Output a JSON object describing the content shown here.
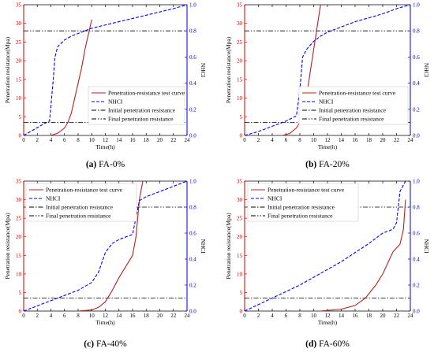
{
  "chart_data": [
    {
      "type": "line",
      "caption_letter": "(a)",
      "caption_text": "FA-0%",
      "xlabel": "Time(h)",
      "ylabel": "Penetration resistance(Mpa)",
      "y2label": "NHCI",
      "xlim": [
        0,
        24
      ],
      "ylim": [
        0,
        35
      ],
      "y2lim": [
        0,
        1.0
      ],
      "xticks": [
        0,
        2,
        4,
        6,
        8,
        10,
        12,
        14,
        16,
        18,
        20,
        22,
        24
      ],
      "yticks": [
        0,
        5,
        10,
        15,
        20,
        25,
        30,
        35
      ],
      "y2ticks": [
        0,
        0.2,
        0.4,
        0.6,
        0.8,
        1.0
      ],
      "legend_position": "center-right",
      "legend": [
        "Penetration-resistance test curve",
        "NHCI",
        "Initial penetration resistance",
        "Final penetration resistance"
      ],
      "series": [
        {
          "name": "Penetration-resistance test curve",
          "axis": "left",
          "color": "#b22222",
          "x": [
            4.0,
            5.0,
            6.0,
            6.5,
            7.0,
            7.5,
            8.0,
            8.5,
            9.0,
            9.5,
            10.0
          ],
          "y": [
            0.0,
            0.6,
            2.0,
            3.5,
            6.0,
            10.0,
            14.0,
            18.0,
            23.0,
            27.0,
            31.0
          ]
        },
        {
          "name": "NHCI",
          "axis": "right",
          "color": "#0000ff",
          "x": [
            0,
            1,
            2,
            3,
            3.8,
            4.3,
            4.6,
            5.0,
            6.0,
            7.0,
            8.0,
            9.0,
            10.0,
            14.0,
            18.0,
            22.0,
            24.0
          ],
          "y": [
            0,
            0.03,
            0.06,
            0.09,
            0.11,
            0.4,
            0.6,
            0.68,
            0.73,
            0.76,
            0.78,
            0.8,
            0.82,
            0.87,
            0.92,
            0.97,
            1.0
          ]
        }
      ],
      "initial_penetration_resistance": 3.5,
      "final_penetration_resistance": 28
    },
    {
      "type": "line",
      "caption_letter": "(b)",
      "caption_text": "FA-20%",
      "xlabel": "Time(h)",
      "ylabel": "Penetration resistance(Mpa)",
      "y2label": "NHCI",
      "xlim": [
        0,
        24
      ],
      "ylim": [
        0,
        35
      ],
      "y2lim": [
        0,
        1.0
      ],
      "xticks": [
        0,
        2,
        4,
        6,
        8,
        10,
        12,
        14,
        16,
        18,
        20,
        22,
        24
      ],
      "yticks": [
        0,
        5,
        10,
        15,
        20,
        25,
        30,
        35
      ],
      "y2ticks": [
        0,
        0.2,
        0.4,
        0.6,
        0.8,
        1.0
      ],
      "legend_position": "center-right",
      "legend": [
        "Penetration-resistance test curve",
        "NHCI",
        "Initial penetration resistance",
        "Final penetration resistance"
      ],
      "series": [
        {
          "name": "Penetration-resistance test curve",
          "axis": "left",
          "color": "#b22222",
          "x": [
            5.5,
            6.5,
            7.5,
            8.0,
            8.5,
            9.0,
            9.5,
            10.0,
            10.5,
            11.0
          ],
          "y": [
            0.0,
            0.5,
            2.0,
            3.5,
            6.0,
            11.0,
            17.0,
            23.0,
            29.0,
            35.0
          ]
        },
        {
          "name": "NHCI",
          "axis": "right",
          "color": "#0000ff",
          "x": [
            0,
            2,
            4,
            6,
            7.5,
            8.0,
            8.4,
            9.0,
            10.0,
            11.0,
            12.0,
            14.0,
            16.0,
            18.0,
            20.0,
            22.0,
            24.0
          ],
          "y": [
            0,
            0.03,
            0.07,
            0.11,
            0.15,
            0.35,
            0.6,
            0.66,
            0.72,
            0.76,
            0.79,
            0.83,
            0.87,
            0.9,
            0.93,
            0.97,
            1.0
          ]
        }
      ],
      "initial_penetration_resistance": 3.5,
      "final_penetration_resistance": 28
    },
    {
      "type": "line",
      "caption_letter": "(c)",
      "caption_text": "FA-40%",
      "xlabel": "Time(h)",
      "ylabel": "Penetration resistance(Mpa)",
      "y2label": "NHCI",
      "xlim": [
        0,
        24
      ],
      "ylim": [
        0,
        35
      ],
      "y2lim": [
        0,
        1.0
      ],
      "xticks": [
        0,
        2,
        4,
        6,
        8,
        10,
        12,
        14,
        16,
        18,
        20,
        22,
        24
      ],
      "yticks": [
        0,
        5,
        10,
        15,
        20,
        25,
        30,
        35
      ],
      "y2ticks": [
        0,
        0.2,
        0.4,
        0.6,
        0.8,
        1.0
      ],
      "legend_position": "top-left",
      "legend": [
        "Penetration-resistance test curve",
        "NHCI",
        "Initial penetration resistance",
        "Final penetration resistance"
      ],
      "series": [
        {
          "name": "Penetration-resistance test curve",
          "axis": "left",
          "color": "#b22222",
          "x": [
            8.0,
            10.0,
            11.0,
            12.0,
            13.0,
            14.0,
            15.0,
            16.0,
            16.5,
            17.0,
            17.5
          ],
          "y": [
            0.0,
            0.3,
            1.0,
            2.5,
            5.5,
            9.0,
            12.0,
            15.0,
            20.0,
            30.0,
            35.0
          ]
        },
        {
          "name": "NHCI",
          "axis": "right",
          "color": "#0000ff",
          "x": [
            0,
            2,
            4,
            6,
            8,
            10,
            11,
            12,
            13,
            14,
            15,
            16,
            16.5,
            17.0,
            18.0,
            20.0,
            22.0,
            24.0
          ],
          "y": [
            0,
            0.04,
            0.08,
            0.12,
            0.16,
            0.22,
            0.3,
            0.45,
            0.52,
            0.55,
            0.57,
            0.59,
            0.72,
            0.85,
            0.88,
            0.92,
            0.96,
            1.0
          ]
        }
      ],
      "initial_penetration_resistance": 3.5,
      "final_penetration_resistance": 28
    },
    {
      "type": "line",
      "caption_letter": "(d)",
      "caption_text": "FA-60%",
      "xlabel": "Time(h)",
      "ylabel": "Penetration resistance(Mpa)",
      "y2label": "NHCI",
      "xlim": [
        0,
        24
      ],
      "ylim": [
        0,
        35
      ],
      "y2lim": [
        0,
        1.0
      ],
      "xticks": [
        0,
        2,
        4,
        6,
        8,
        10,
        12,
        14,
        16,
        18,
        20,
        22,
        24
      ],
      "yticks": [
        0,
        5,
        10,
        15,
        20,
        25,
        30,
        35
      ],
      "y2ticks": [
        0,
        0.2,
        0.4,
        0.6,
        0.8,
        1.0
      ],
      "legend_position": "top-left",
      "legend": [
        "Penetration-resistance test curve",
        "NHCI",
        "Initial penetration resistance",
        "Final penetration resistance"
      ],
      "series": [
        {
          "name": "Penetration-resistance test curve",
          "axis": "left",
          "color": "#b22222",
          "x": [
            11.0,
            14.0,
            16.0,
            17.5,
            19.0,
            20.0,
            21.0,
            21.5,
            22.0,
            22.5,
            23.0,
            23.3
          ],
          "y": [
            0.0,
            0.5,
            1.5,
            3.5,
            7.0,
            10.0,
            14.0,
            16.0,
            17.0,
            18.0,
            22.0,
            30.0
          ]
        },
        {
          "name": "NHCI",
          "axis": "right",
          "color": "#0000ff",
          "x": [
            0,
            2,
            4,
            6,
            8,
            10,
            12,
            14,
            16,
            18,
            20,
            21,
            21.5,
            22.0,
            22.5,
            23.0,
            23.3
          ],
          "y": [
            0,
            0.05,
            0.1,
            0.15,
            0.2,
            0.26,
            0.32,
            0.38,
            0.45,
            0.52,
            0.6,
            0.62,
            0.63,
            0.68,
            0.92,
            0.97,
            1.0
          ]
        }
      ],
      "initial_penetration_resistance": 3.5,
      "final_penetration_resistance": 28
    }
  ]
}
